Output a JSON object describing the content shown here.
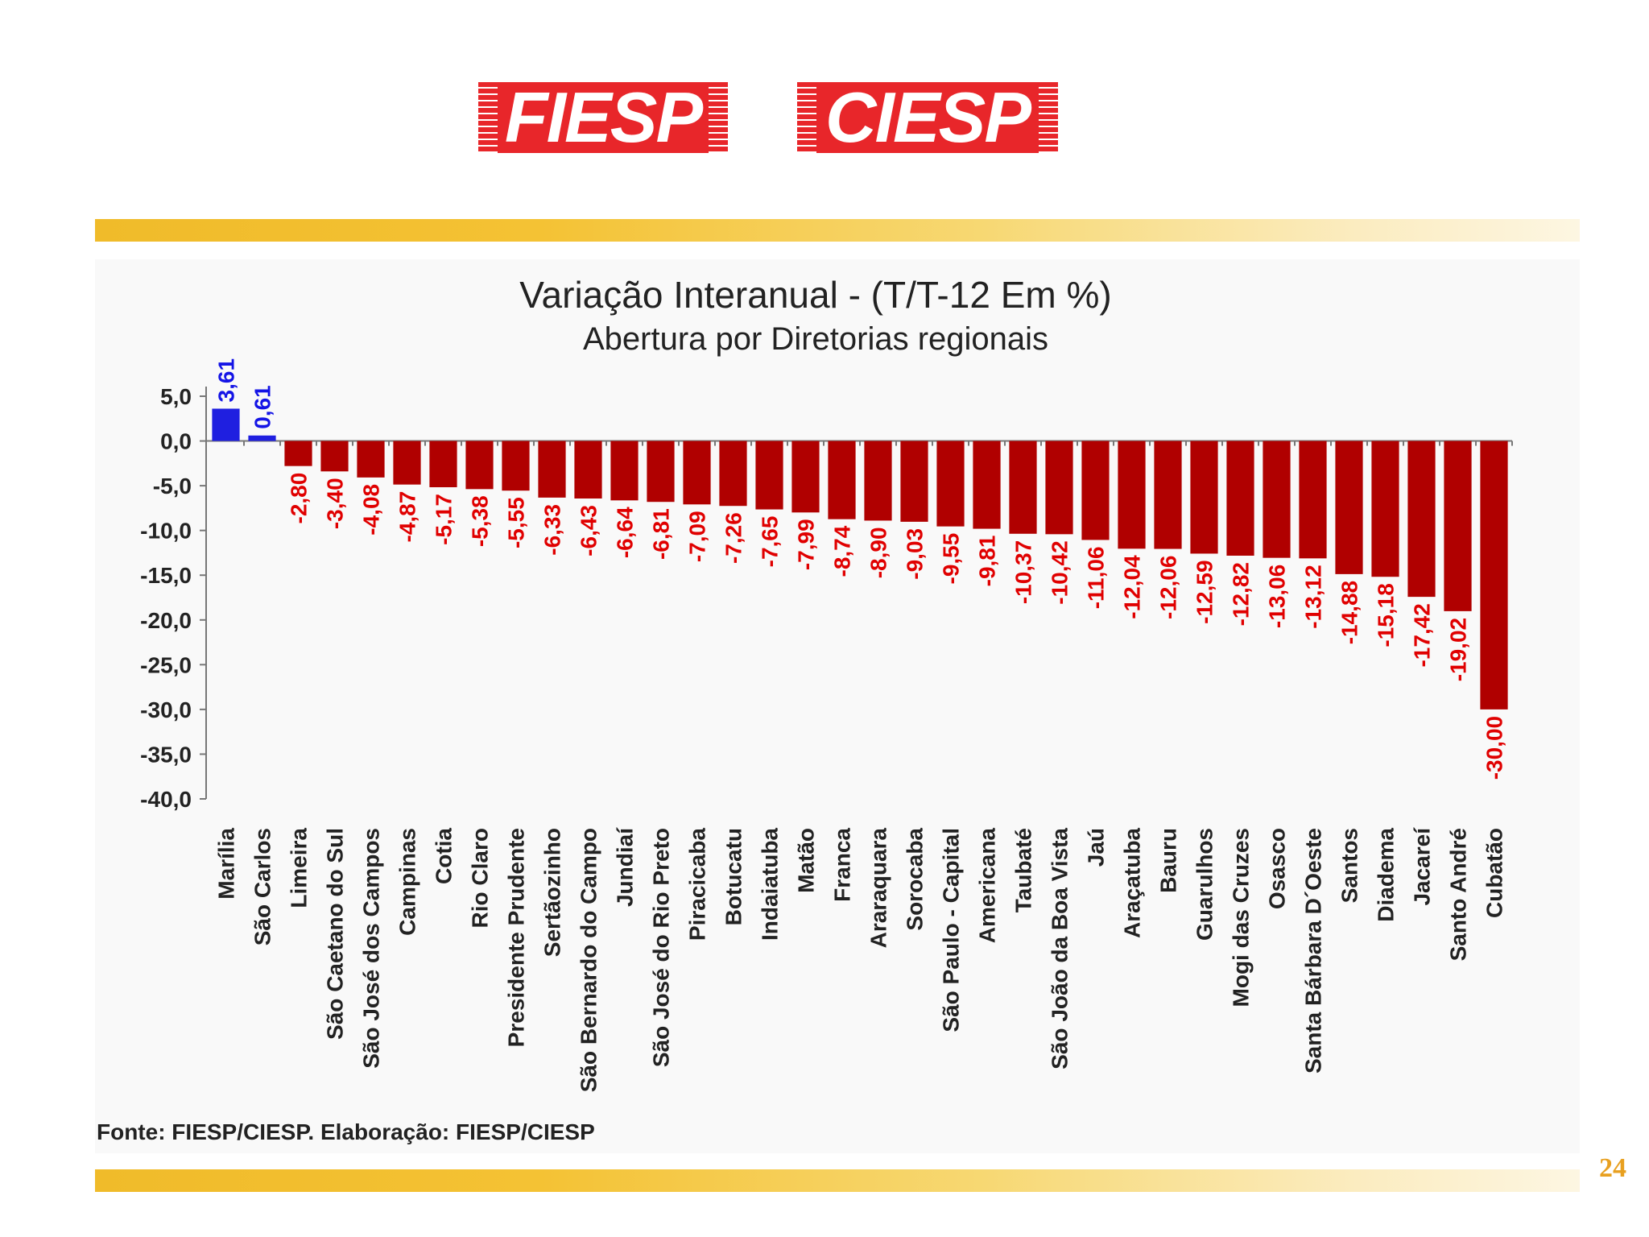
{
  "logos": {
    "left": "FIESP",
    "right": "CIESP"
  },
  "colors": {
    "brand_red": "#e8262a",
    "positive_bar": "#1f1fe0",
    "negative_bar": "#b00000",
    "positive_label": "#1414e6",
    "negative_label": "#e00000",
    "band": "#f0bb2a",
    "page_number": "#e8a020"
  },
  "chart_data": {
    "type": "bar",
    "title": "Variação Interanual - (T/T-12 Em %)",
    "subtitle": "Abertura por Diretorias regionais",
    "xlabel": "",
    "ylabel": "",
    "ylim": [
      -40,
      5
    ],
    "yticks": [
      5,
      0,
      -5,
      -10,
      -15,
      -20,
      -25,
      -30,
      -35,
      -40
    ],
    "ytick_labels": [
      "5,0",
      "0,0",
      "-5,0",
      "-10,0",
      "-15,0",
      "-20,0",
      "-25,0",
      "-30,0",
      "-35,0",
      "-40,0"
    ],
    "grid": false,
    "legend": "none",
    "categories": [
      "Marília",
      "São Carlos",
      "Limeira",
      "São Caetano do Sul",
      "São José dos Campos",
      "Campinas",
      "Cotia",
      "Rio Claro",
      "Presidente Prudente",
      "Sertãozinho",
      "São Bernardo do Campo",
      "Jundiaí",
      "São José do Rio Preto",
      "Piracicaba",
      "Botucatu",
      "Indaiatuba",
      "Matão",
      "Franca",
      "Araraquara",
      "Sorocaba",
      "São Paulo - Capital",
      "Americana",
      "Taubaté",
      "São João da Boa Vista",
      "Jaú",
      "Araçatuba",
      "Bauru",
      "Guarulhos",
      "Mogi das Cruzes",
      "Osasco",
      "Santa Bárbara D´Oeste",
      "Santos",
      "Diadema",
      "Jacareí",
      "Santo André",
      "Cubatão"
    ],
    "values": [
      3.61,
      0.61,
      -2.8,
      -3.4,
      -4.08,
      -4.87,
      -5.17,
      -5.38,
      -5.55,
      -6.33,
      -6.43,
      -6.64,
      -6.81,
      -7.09,
      -7.26,
      -7.65,
      -7.99,
      -8.74,
      -8.9,
      -9.03,
      -9.55,
      -9.81,
      -10.37,
      -10.42,
      -11.06,
      -12.04,
      -12.06,
      -12.59,
      -12.82,
      -13.06,
      -13.12,
      -14.88,
      -15.18,
      -17.42,
      -19.02,
      -30.0
    ],
    "value_labels": [
      "3,61",
      "0,61",
      "-2,80",
      "-3,40",
      "-4,08",
      "-4,87",
      "-5,17",
      "-5,38",
      "-5,55",
      "-6,33",
      "-6,43",
      "-6,64",
      "-6,81",
      "-7,09",
      "-7,26",
      "-7,65",
      "-7,99",
      "-8,74",
      "-8,90",
      "-9,03",
      "-9,55",
      "-9,81",
      "-10,37",
      "-10,42",
      "-11,06",
      "-12,04",
      "-12,06",
      "-12,59",
      "-12,82",
      "-13,06",
      "-13,12",
      "-14,88",
      "-15,18",
      "-17,42",
      "-19,02",
      "-30,00"
    ]
  },
  "footer": {
    "source": "Fonte: FIESP/CIESP. Elaboração: FIESP/CIESP",
    "page_number": "24"
  }
}
